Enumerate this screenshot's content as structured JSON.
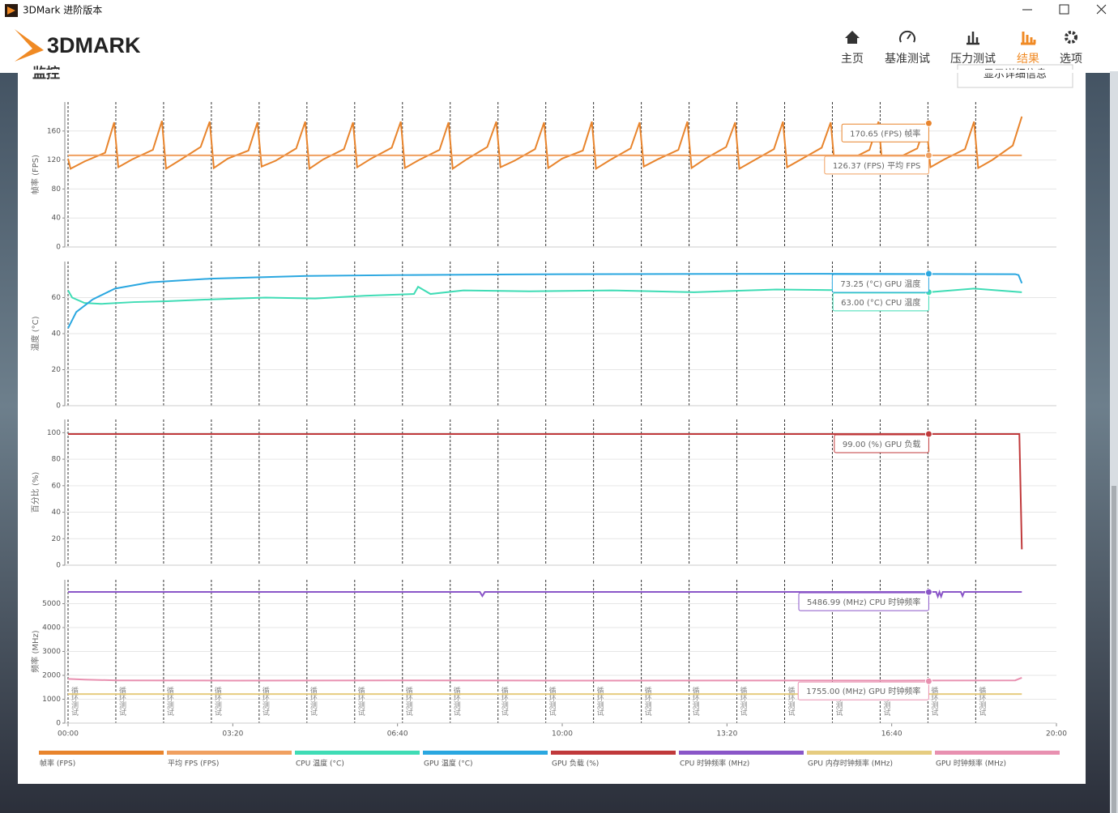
{
  "window_title": "3DMark 进阶版本",
  "app_name": "3DMARK",
  "nav": [
    {
      "label": "主页"
    },
    {
      "label": "基准测试"
    },
    {
      "label": "压力测试"
    },
    {
      "label": "结果",
      "active": true
    },
    {
      "label": "选项"
    }
  ],
  "section_title": "监控",
  "button": "显示详细信息",
  "chart_data": [
    {
      "type": "line",
      "y_label": "帧率 (FPS)",
      "xlim": [
        0,
        1200
      ],
      "ylim": [
        0,
        200
      ],
      "yticks": [
        0,
        40,
        80,
        120,
        160
      ],
      "series": [
        {
          "name": "帧率 (FPS)",
          "color": "#e8842c",
          "x": [
            0,
            3,
            20,
            45,
            56,
            61,
            78,
            103,
            114,
            119,
            136,
            161,
            172,
            177,
            194,
            219,
            230,
            235,
            252,
            277,
            288,
            293,
            310,
            335,
            346,
            351,
            368,
            393,
            404,
            409,
            426,
            451,
            462,
            467,
            484,
            509,
            520,
            525,
            542,
            567,
            578,
            583,
            600,
            625,
            636,
            641,
            658,
            683,
            694,
            699,
            716,
            741,
            752,
            757,
            774,
            799,
            810,
            815,
            832,
            857,
            868,
            873,
            890,
            915,
            926,
            931,
            948,
            973,
            984,
            989,
            1006,
            1031,
            1042,
            1047,
            1064,
            1089,
            1100,
            1105,
            1122,
            1147,
            1158
          ],
          "values": [
            122,
            108,
            118,
            130,
            172,
            110,
            121,
            134,
            174,
            108,
            120,
            138,
            173,
            109,
            122,
            133,
            172,
            111,
            119,
            136,
            173,
            108,
            121,
            135,
            172,
            110,
            122,
            137,
            173,
            109,
            120,
            134,
            172,
            108,
            121,
            138,
            173,
            110,
            119,
            135,
            172,
            109,
            122,
            133,
            173,
            108,
            120,
            136,
            172,
            111,
            121,
            134,
            173,
            109,
            122,
            138,
            172,
            108,
            119,
            135,
            173,
            110,
            121,
            137,
            172,
            109,
            120,
            134,
            173,
            108,
            122,
            136,
            172,
            110,
            121,
            135,
            173,
            109,
            120,
            140,
            180
          ],
          "tooltip": {
            "x": 1045,
            "value": 170.65,
            "label": "170.65 (FPS) 帧率"
          }
        },
        {
          "name": "平均 FPS (FPS)",
          "color": "#f0a060",
          "x": [
            0,
            1158
          ],
          "values": [
            126.37,
            126.37
          ],
          "tooltip": {
            "x": 1045,
            "value": 126.37,
            "label": "126.37 (FPS) 平均 FPS"
          }
        }
      ]
    },
    {
      "type": "line",
      "y_label": "温度 (°C)",
      "xlim": [
        0,
        1200
      ],
      "ylim": [
        0,
        80
      ],
      "yticks": [
        0,
        20,
        40,
        60
      ],
      "series": [
        {
          "name": "CPU 温度 (°C)",
          "color": "#3fdcb5",
          "x": [
            0,
            5,
            20,
            40,
            80,
            120,
            173,
            240,
            300,
            360,
            420,
            425,
            440,
            480,
            560,
            660,
            760,
            860,
            960,
            1045,
            1100,
            1158
          ],
          "values": [
            64,
            60,
            57,
            56.5,
            57.5,
            58,
            59,
            60,
            59.5,
            61,
            62,
            66,
            62,
            64,
            63.5,
            64,
            63,
            64.5,
            64,
            63,
            65,
            63
          ],
          "tooltip": {
            "x": 1045,
            "value": 63.0,
            "label": "63.00 (°C) CPU 温度"
          }
        },
        {
          "name": "GPU 温度 (°C)",
          "color": "#2aa7e0",
          "x": [
            0,
            10,
            30,
            57,
            100,
            173,
            290,
            400,
            600,
            900,
            1150,
            1154,
            1158
          ],
          "values": [
            43,
            52,
            59,
            65,
            68.5,
            70.5,
            72,
            72.5,
            73,
            73.2,
            73,
            72.5,
            68
          ],
          "tooltip": {
            "x": 1045,
            "value": 73.25,
            "label": "73.25 (°C) GPU 温度"
          }
        }
      ]
    },
    {
      "type": "line",
      "y_label": "百分比 (%)",
      "xlim": [
        0,
        1200
      ],
      "ylim": [
        0,
        110
      ],
      "yticks": [
        0,
        20,
        40,
        60,
        80,
        100
      ],
      "series": [
        {
          "name": "GPU 负载 (%)",
          "color": "#c0393b",
          "x": [
            0,
            1152,
            1155,
            1158
          ],
          "values": [
            99,
            99,
            99,
            12
          ],
          "tooltip": {
            "x": 1045,
            "value": 99.0,
            "label": "99.00 (%) GPU 负载"
          }
        }
      ]
    },
    {
      "type": "line",
      "y_label": "频率 (MHz)",
      "xlim": [
        0,
        1200
      ],
      "ylim": [
        0,
        6000
      ],
      "yticks": [
        0,
        1000,
        2000,
        3000,
        4000,
        5000
      ],
      "xticks": [
        {
          "value": 0,
          "label": "00:00"
        },
        {
          "value": 200,
          "label": "03:20"
        },
        {
          "value": 400,
          "label": "06:40"
        },
        {
          "value": 600,
          "label": "10:00"
        },
        {
          "value": 800,
          "label": "13:20"
        },
        {
          "value": 1000,
          "label": "16:40"
        },
        {
          "value": 1200,
          "label": "20:00"
        }
      ],
      "markers": {
        "label": "循环测试",
        "x": [
          0,
          58,
          116,
          174,
          232,
          290,
          348,
          406,
          464,
          522,
          580,
          638,
          696,
          754,
          812,
          870,
          928,
          986,
          1044,
          1102
        ]
      },
      "series": [
        {
          "name": "CPU 时钟频率 (MHz)",
          "color": "#8a56c8",
          "x": [
            0,
            500,
            503,
            506,
            1054,
            1056,
            1058,
            1060,
            1062,
            1084,
            1086,
            1088,
            1158
          ],
          "values": [
            5490,
            5490,
            5320,
            5490,
            5490,
            5300,
            5490,
            5300,
            5490,
            5490,
            5320,
            5490,
            5490
          ],
          "tooltip": {
            "x": 1045,
            "value": 5486.99,
            "label": "5486.99 (MHz) CPU 时钟频率"
          }
        },
        {
          "name": "GPU 内存时钟频率 (MHz)",
          "color": "#e6cc80",
          "x": [
            0,
            1158
          ],
          "values": [
            1215,
            1215
          ]
        },
        {
          "name": "GPU 时钟频率 (MHz)",
          "color": "#e890b0",
          "x": [
            0,
            20,
            60,
            200,
            400,
            600,
            800,
            1000,
            1150,
            1158
          ],
          "values": [
            1850,
            1820,
            1790,
            1780,
            1790,
            1780,
            1785,
            1780,
            1790,
            1900
          ],
          "tooltip": {
            "x": 1045,
            "value": 1755.0,
            "label": "1755.00 (MHz) GPU 时钟频率"
          }
        }
      ]
    }
  ]
}
